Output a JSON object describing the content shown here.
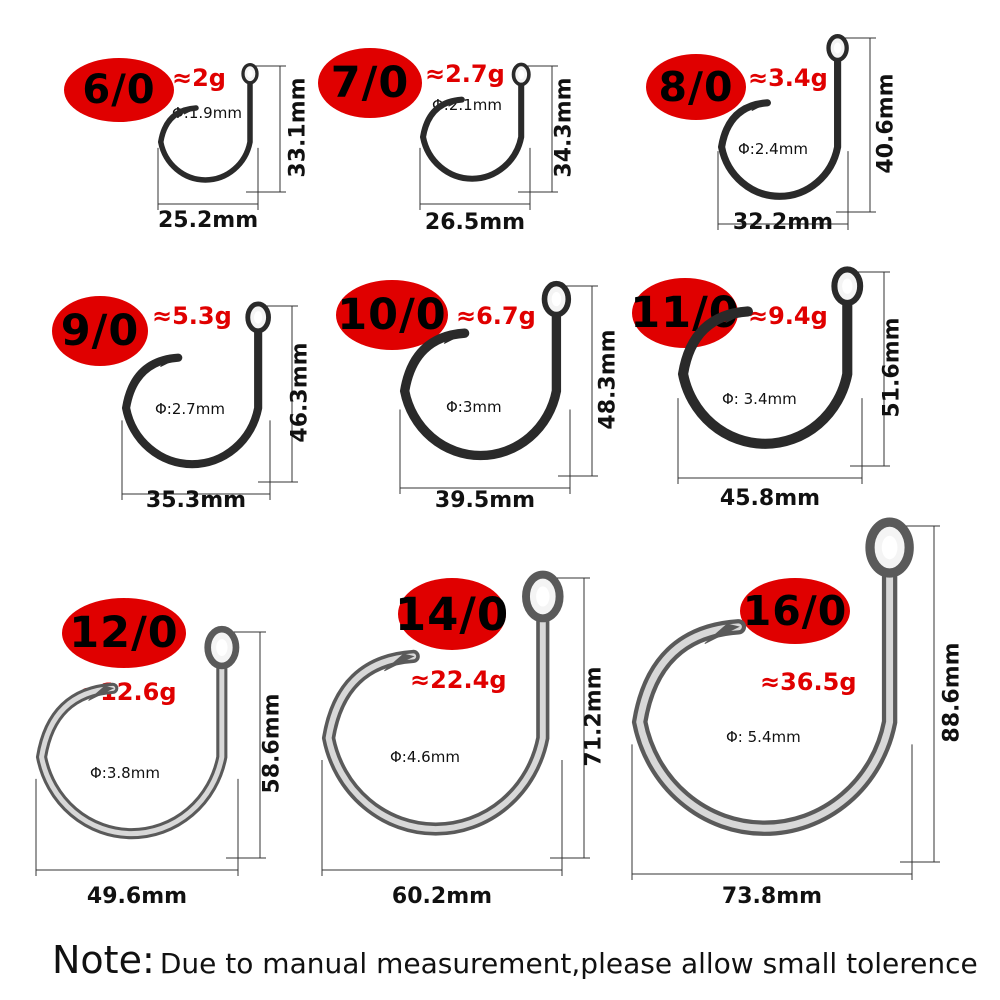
{
  "hooks": [
    {
      "size": "6/0",
      "weight": "≈2g",
      "diameter": "Φ:1.9mm",
      "width": "25.2mm",
      "height": "33.1mm"
    },
    {
      "size": "7/0",
      "weight": "≈2.7g",
      "diameter": "Φ:2.1mm",
      "width": "26.5mm",
      "height": "34.3mm"
    },
    {
      "size": "8/0",
      "weight": "≈3.4g",
      "diameter": "Φ:2.4mm",
      "width": "32.2mm",
      "height": "40.6mm"
    },
    {
      "size": "9/0",
      "weight": "≈5.3g",
      "diameter": "Φ:2.7mm",
      "width": "35.3mm",
      "height": "46.3mm"
    },
    {
      "size": "10/0",
      "weight": "≈6.7g",
      "diameter": "Φ:3mm",
      "width": "39.5mm",
      "height": "48.3mm"
    },
    {
      "size": "11/0",
      "weight": "≈9.4g",
      "diameter": "Φ: 3.4mm",
      "width": "45.8mm",
      "height": "51.6mm"
    },
    {
      "size": "12/0",
      "weight": "≈12.6g",
      "diameter": "Φ:3.8mm",
      "width": "49.6mm",
      "height": "58.6mm"
    },
    {
      "size": "14/0",
      "weight": "≈22.4g",
      "diameter": "Φ:4.6mm",
      "width": "60.2mm",
      "height": "71.2mm"
    },
    {
      "size": "16/0",
      "weight": "≈36.5g",
      "diameter": "Φ: 5.4mm",
      "width": "73.8mm",
      "height": "88.6mm"
    }
  ],
  "note": {
    "title": "Note:",
    "text": "Due to manual measurement,please allow small tolerence"
  },
  "colors": {
    "badge": "#e00000",
    "weight_text": "#e00000",
    "hook_steel": "#2a2a2a",
    "hook_steel_light": "#9a9a9a"
  }
}
